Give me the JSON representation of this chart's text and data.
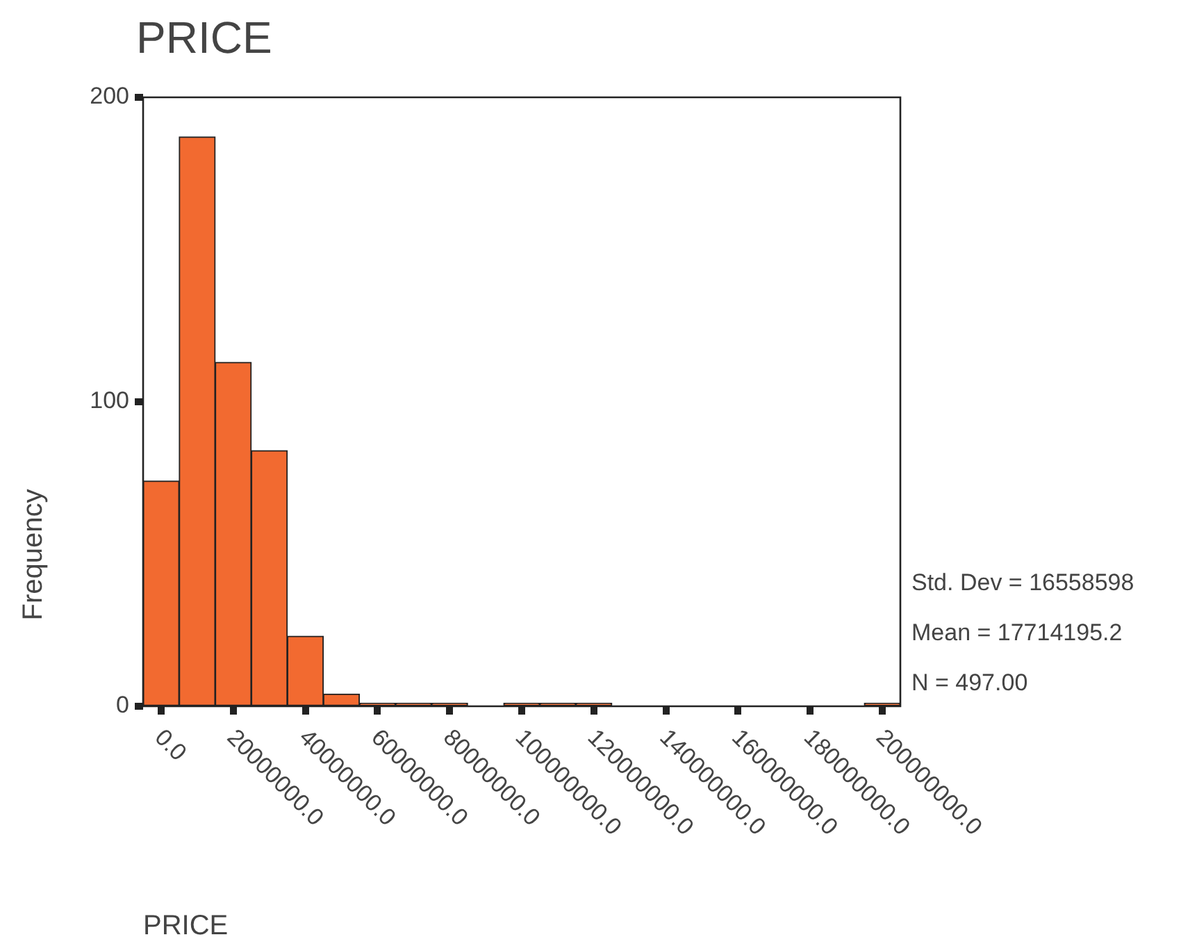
{
  "chart_data": {
    "type": "histogram",
    "title": "PRICE",
    "xlabel": "PRICE",
    "ylabel": "Frequency",
    "bins": [
      -5000000,
      5000000,
      15000000,
      25000000,
      35000000,
      45000000,
      55000000,
      65000000,
      75000000,
      85000000,
      95000000,
      105000000,
      115000000,
      125000000,
      135000000,
      145000000,
      155000000,
      165000000,
      175000000,
      185000000,
      195000000,
      205000000
    ],
    "values": [
      74,
      187,
      113,
      84,
      23,
      4,
      1,
      1,
      1,
      0,
      1,
      1,
      1,
      0,
      0,
      0,
      0,
      0,
      0,
      0,
      1
    ],
    "color": "#f26a30",
    "xlim": [
      -5000000,
      205000000
    ],
    "xticks": [
      {
        "value": 0,
        "label": "0.0"
      },
      {
        "value": 20000000,
        "label": "20000000.0"
      },
      {
        "value": 40000000,
        "label": "40000000.0"
      },
      {
        "value": 60000000,
        "label": "60000000.0"
      },
      {
        "value": 80000000,
        "label": "80000000.0"
      },
      {
        "value": 100000000,
        "label": "100000000.0"
      },
      {
        "value": 120000000,
        "label": "120000000.0"
      },
      {
        "value": 140000000,
        "label": "140000000.0"
      },
      {
        "value": 160000000,
        "label": "160000000.0"
      },
      {
        "value": 180000000,
        "label": "180000000.0"
      },
      {
        "value": 200000000,
        "label": "200000000.0"
      }
    ],
    "ylim": [
      0,
      200
    ],
    "yticks": [
      0,
      100,
      200
    ],
    "grid": false,
    "legend": false,
    "annotations": [
      "Std. Dev = 16558598",
      "Mean = 17714195.2",
      "N = 497.00"
    ]
  }
}
